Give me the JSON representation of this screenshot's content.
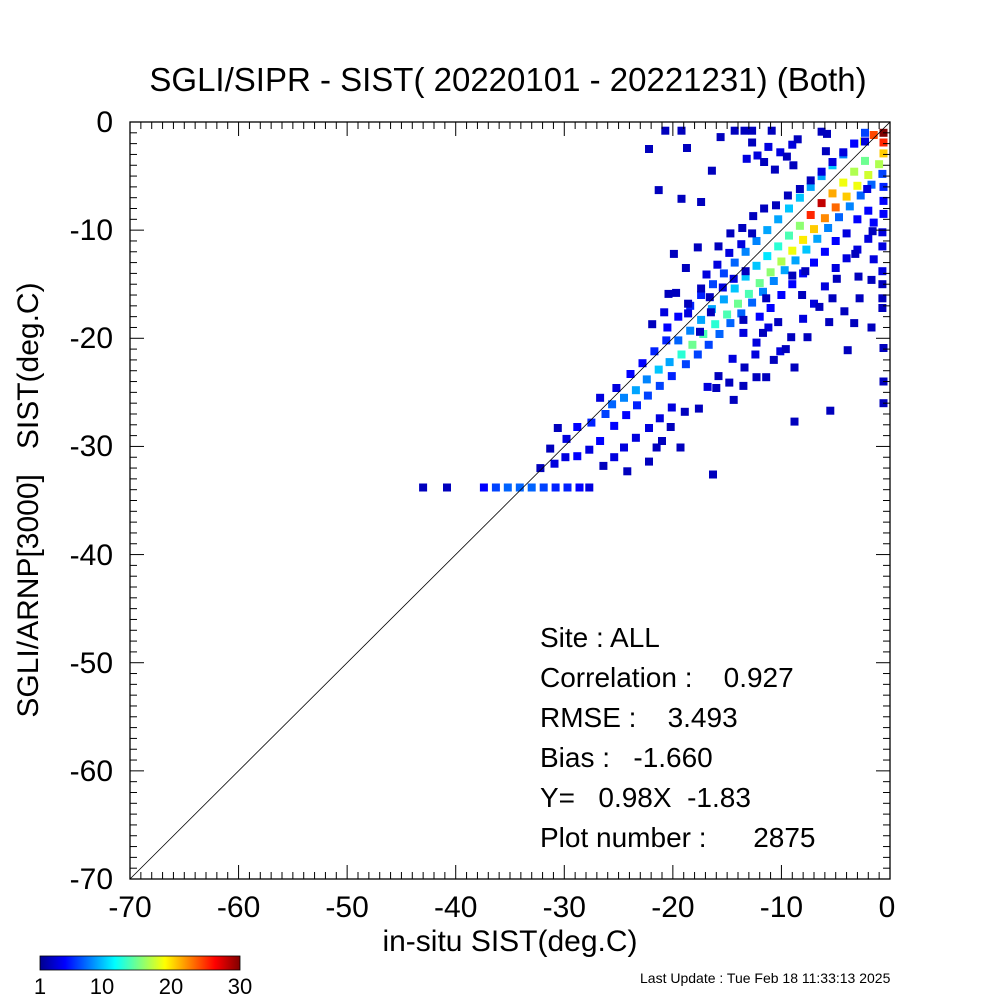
{
  "chart_data": {
    "type": "heatmap",
    "title": "SGLI/SIPR - SIST( 20220101 - 20221231) (Both)",
    "xlabel": "in-situ SIST(deg.C)",
    "ylabel": "SGLI/ARNP[3000]   SIST(deg.C)",
    "xlim": [
      -70,
      0
    ],
    "ylim": [
      -70,
      0
    ],
    "xticks": [
      "-70",
      "-60",
      "-50",
      "-40",
      "-30",
      "-20",
      "-10",
      "0"
    ],
    "yticks": [
      "0",
      "-10",
      "-20",
      "-30",
      "-40",
      "-50",
      "-60",
      "-70"
    ],
    "reference_line": "1:1",
    "colorbar": {
      "min": 1,
      "max": 30,
      "ticks": [
        "1",
        "10",
        "20",
        "30"
      ],
      "colormap": "jet"
    },
    "cells": [
      [
        -43,
        -33.8,
        1
      ],
      [
        -40.8,
        -33.8,
        1
      ],
      [
        -37.4,
        -33.8,
        3
      ],
      [
        -36.3,
        -33.8,
        5
      ],
      [
        -35.2,
        -33.8,
        6
      ],
      [
        -34.1,
        -33.8,
        6
      ],
      [
        -33,
        -33.8,
        6
      ],
      [
        -31.9,
        -33.8,
        5
      ],
      [
        -30.8,
        -33.8,
        4
      ],
      [
        -29.7,
        -33.8,
        4
      ],
      [
        -28.6,
        -33.8,
        3
      ],
      [
        -27.7,
        -33.8,
        2
      ],
      [
        -32.2,
        -32,
        1
      ],
      [
        -30.9,
        -31.6,
        2
      ],
      [
        -29.9,
        -31,
        2
      ],
      [
        -28.8,
        -30.9,
        3
      ],
      [
        -27.7,
        -30.3,
        2
      ],
      [
        -26.7,
        -29.5,
        3
      ],
      [
        -31.3,
        -30.2,
        1
      ],
      [
        -29.8,
        -29.3,
        2
      ],
      [
        -30.6,
        -28.3,
        1
      ],
      [
        -28.8,
        -28.2,
        3
      ],
      [
        -27.5,
        -27.8,
        4
      ],
      [
        -26.2,
        -27,
        5
      ],
      [
        -25.6,
        -26.1,
        6
      ],
      [
        -24.5,
        -25.5,
        7
      ],
      [
        -23.4,
        -24.8,
        8
      ],
      [
        -22.4,
        -23.8,
        7
      ],
      [
        -21.3,
        -22.9,
        9
      ],
      [
        -20.3,
        -22.2,
        8
      ],
      [
        -25.4,
        -28.1,
        3
      ],
      [
        -24.3,
        -27.1,
        3
      ],
      [
        -23.3,
        -26.2,
        4
      ],
      [
        -22.3,
        -25.3,
        5
      ],
      [
        -21.2,
        -24.4,
        5
      ],
      [
        -20.1,
        -23.5,
        4
      ],
      [
        -26.7,
        -25.5,
        2
      ],
      [
        -25.2,
        -24.6,
        2
      ],
      [
        -23.9,
        -23.3,
        3
      ],
      [
        -22.8,
        -22.3,
        3
      ],
      [
        -21.7,
        -21.2,
        4
      ],
      [
        -20.6,
        -20.2,
        4
      ],
      [
        -19.2,
        -21.5,
        12
      ],
      [
        -18.2,
        -20.6,
        14
      ],
      [
        -17.2,
        -19.6,
        13
      ],
      [
        -16.1,
        -18.7,
        12
      ],
      [
        -15,
        -17.8,
        13
      ],
      [
        -14,
        -16.8,
        14
      ],
      [
        -13,
        -15.9,
        13
      ],
      [
        -12,
        -14.9,
        14
      ],
      [
        -11,
        -13.9,
        15
      ],
      [
        -10,
        -12.9,
        16
      ],
      [
        -9,
        -11.9,
        18
      ],
      [
        -8,
        -10.9,
        19
      ],
      [
        -7,
        -9.9,
        20
      ],
      [
        -6,
        -8.9,
        22
      ],
      [
        -5,
        -7.9,
        23
      ],
      [
        -4,
        -6.9,
        20
      ],
      [
        -3,
        -5.9,
        18
      ],
      [
        -2,
        -4.9,
        17
      ],
      [
        -1,
        -3.9,
        16
      ],
      [
        -0.6,
        -2.9,
        20
      ],
      [
        -0.6,
        -1.9,
        25
      ],
      [
        -0.6,
        -1,
        30
      ],
      [
        -1.5,
        -1.2,
        24
      ],
      [
        -2.4,
        -1.8,
        18
      ],
      [
        -19.5,
        -20.2,
        6
      ],
      [
        -18.4,
        -19.3,
        7
      ],
      [
        -17.4,
        -18.3,
        8
      ],
      [
        -16.4,
        -17.3,
        8
      ],
      [
        -15.3,
        -16.4,
        8
      ],
      [
        -14.3,
        -15.4,
        9
      ],
      [
        -13.3,
        -14.3,
        9
      ],
      [
        -12.3,
        -13.3,
        9
      ],
      [
        -11.3,
        -12.4,
        10
      ],
      [
        -10.3,
        -11.5,
        12
      ],
      [
        -9.3,
        -10.5,
        13
      ],
      [
        -8.3,
        -9.6,
        15
      ],
      [
        -7.3,
        -8.6,
        25
      ],
      [
        -6.3,
        -7.5,
        28
      ],
      [
        -5.3,
        -6.6,
        21
      ],
      [
        -4.3,
        -5.6,
        18
      ],
      [
        -3.3,
        -4.6,
        16
      ],
      [
        -2.3,
        -3.6,
        14
      ],
      [
        -18.8,
        -22.4,
        5
      ],
      [
        -17.7,
        -21.5,
        5
      ],
      [
        -16.7,
        -20.6,
        5
      ],
      [
        -15.7,
        -19.6,
        6
      ],
      [
        -14.7,
        -18.6,
        6
      ],
      [
        -13.7,
        -17.7,
        6
      ],
      [
        -12.7,
        -16.7,
        6
      ],
      [
        -11.7,
        -15.7,
        7
      ],
      [
        -10.7,
        -14.7,
        7
      ],
      [
        -9.7,
        -13.7,
        8
      ],
      [
        -8.7,
        -12.8,
        8
      ],
      [
        -7.7,
        -11.8,
        9
      ],
      [
        -6.7,
        -10.8,
        8
      ],
      [
        -5.7,
        -9.8,
        7
      ],
      [
        -4.7,
        -8.8,
        6
      ],
      [
        -3.7,
        -7.8,
        7
      ],
      [
        -2.7,
        -6.8,
        6
      ],
      [
        -1.7,
        -5.8,
        6
      ],
      [
        -0.7,
        -4.8,
        5
      ],
      [
        -0.6,
        -6,
        4
      ],
      [
        -0.6,
        -7.3,
        3
      ],
      [
        -0.6,
        -8.5,
        3
      ],
      [
        -1.5,
        -9.3,
        3
      ],
      [
        -0.7,
        -10.2,
        2
      ],
      [
        -0.7,
        -11.5,
        2
      ],
      [
        -1.5,
        -12.7,
        2
      ],
      [
        -0.7,
        -13.8,
        2
      ],
      [
        -0.7,
        -15,
        1
      ],
      [
        -0.7,
        -16.3,
        1
      ],
      [
        -0.7,
        -17.2,
        1
      ],
      [
        -20.5,
        -19,
        3
      ],
      [
        -19.5,
        -18,
        3
      ],
      [
        -18.4,
        -17,
        4
      ],
      [
        -17.4,
        -16,
        4
      ],
      [
        -16.3,
        -15,
        5
      ],
      [
        -15.3,
        -14,
        5
      ],
      [
        -14.3,
        -13,
        6
      ],
      [
        -13.3,
        -12,
        7
      ],
      [
        -12.3,
        -11,
        7
      ],
      [
        -11.3,
        -10,
        8
      ],
      [
        -10.3,
        -9,
        8
      ],
      [
        -9.3,
        -8,
        9
      ],
      [
        -8.3,
        -7,
        9
      ],
      [
        -7.3,
        -6,
        8
      ],
      [
        -6.3,
        -5,
        8
      ],
      [
        -5.3,
        -4,
        9
      ],
      [
        -4.3,
        -3,
        7
      ],
      [
        -3.3,
        -2,
        5
      ],
      [
        -2.3,
        -1,
        5
      ],
      [
        -12,
        -18,
        3
      ],
      [
        -11,
        -17.2,
        3
      ],
      [
        -10,
        -16,
        3
      ],
      [
        -9,
        -15,
        3
      ],
      [
        -8,
        -14,
        3
      ],
      [
        -7,
        -13,
        3
      ],
      [
        -6,
        -12,
        3
      ],
      [
        -5,
        -11,
        3
      ],
      [
        -4,
        -10.3,
        2
      ],
      [
        -3,
        -9,
        3
      ],
      [
        -2,
        -8.2,
        3
      ],
      [
        -13.5,
        -19.5,
        2
      ],
      [
        -12.3,
        -20.4,
        2
      ],
      [
        -11.2,
        -19,
        2
      ],
      [
        -10.1,
        -21.2,
        2
      ],
      [
        -9.1,
        -19.9,
        1
      ],
      [
        -8,
        -18.2,
        2
      ],
      [
        -7,
        -16.8,
        2
      ],
      [
        -6,
        -15.2,
        2
      ],
      [
        -5,
        -13.5,
        2
      ],
      [
        -4,
        -12.6,
        2
      ],
      [
        -3,
        -11.8,
        2
      ],
      [
        -2,
        -10.8,
        2
      ],
      [
        -14.5,
        -21.9,
        2
      ],
      [
        -13.4,
        -22.7,
        1
      ],
      [
        -12.4,
        -21.5,
        2
      ],
      [
        -11.4,
        -23.6,
        1
      ],
      [
        -15.8,
        -23.5,
        1
      ],
      [
        -16.8,
        -24.5,
        2
      ],
      [
        -14.8,
        -24.1,
        1
      ],
      [
        -20.1,
        -26.4,
        2
      ],
      [
        -21.2,
        -27.4,
        2
      ],
      [
        -22.2,
        -28.3,
        2
      ],
      [
        -23.4,
        -29.2,
        2
      ],
      [
        -24.5,
        -30.1,
        2
      ],
      [
        -25.4,
        -31,
        2
      ],
      [
        -26.4,
        -31.8,
        1
      ],
      [
        -18.9,
        -26.8,
        1
      ],
      [
        -20.2,
        -28.2,
        1
      ],
      [
        -21.5,
        -30.1,
        1
      ],
      [
        -22.2,
        -31.4,
        1
      ],
      [
        -24.2,
        -32.3,
        1
      ],
      [
        -21,
        -29.5,
        1
      ],
      [
        -19.3,
        -30.1,
        1
      ],
      [
        -16.3,
        -32.6,
        1
      ],
      [
        -20.8,
        -17.6,
        2
      ],
      [
        -21.9,
        -18.7,
        1
      ],
      [
        -20.4,
        -15.9,
        1
      ],
      [
        -16.9,
        -14.1,
        2
      ],
      [
        -15.9,
        -13.2,
        2
      ],
      [
        -14.8,
        -12.1,
        2
      ],
      [
        -13.7,
        -11.3,
        2
      ],
      [
        -12.7,
        -10.3,
        1
      ],
      [
        -15.4,
        -15.3,
        2
      ],
      [
        -14.4,
        -14.5,
        2
      ],
      [
        -13.3,
        -13.8,
        1
      ],
      [
        -17.4,
        -15.4,
        1
      ],
      [
        -16.6,
        -16.2,
        1
      ],
      [
        -18.6,
        -16.8,
        1
      ],
      [
        -19.7,
        -15.8,
        1
      ],
      [
        -18.8,
        -13.5,
        1
      ],
      [
        -19.9,
        -12.2,
        1
      ],
      [
        -17.7,
        -11.6,
        1
      ],
      [
        -15.8,
        -11.5,
        1
      ],
      [
        -14.7,
        -10.3,
        1
      ],
      [
        -13.6,
        -9.8,
        1
      ],
      [
        -12.6,
        -8.7,
        1
      ],
      [
        -11.6,
        -8,
        1
      ],
      [
        -10.5,
        -7.7,
        1
      ],
      [
        -9.4,
        -6.8,
        1
      ],
      [
        -8.3,
        -6.2,
        1
      ],
      [
        -7.3,
        -5.4,
        1
      ],
      [
        -6.3,
        -4.6,
        2
      ],
      [
        -5.3,
        -3.7,
        2
      ],
      [
        -4.3,
        -2.8,
        2
      ],
      [
        -3.3,
        -2,
        3
      ],
      [
        -2.3,
        -1.8,
        2
      ],
      [
        -13.2,
        -3.4,
        2
      ],
      [
        -12.2,
        -3.1,
        2
      ],
      [
        -11.2,
        -2.3,
        2
      ],
      [
        -10.1,
        -2.8,
        2
      ],
      [
        -9,
        -2.1,
        2
      ],
      [
        -12.7,
        -1.9,
        1
      ],
      [
        -11.6,
        -3.7,
        1
      ],
      [
        -10.6,
        -4.4,
        1
      ],
      [
        -9.5,
        -3.2,
        1
      ],
      [
        -8.5,
        -1.6,
        1
      ],
      [
        -18.7,
        -2.4,
        1
      ],
      [
        -15.6,
        -1.4,
        1
      ],
      [
        -12.7,
        -0.8,
        1
      ],
      [
        -5.9,
        -2.7,
        1
      ],
      [
        -5.8,
        -1.1,
        1
      ],
      [
        -19.2,
        -0.8,
        1
      ],
      [
        -14.3,
        -0.8,
        1
      ],
      [
        -13.4,
        -0.8,
        1
      ],
      [
        -10.9,
        -0.8,
        1
      ],
      [
        -6.3,
        -0.9,
        1
      ],
      [
        -22.2,
        -2.5,
        1
      ],
      [
        -16.4,
        -4.5,
        1
      ],
      [
        -8.9,
        -4,
        1
      ],
      [
        -20.7,
        -0.8,
        1
      ],
      [
        -19.2,
        -7.1,
        1
      ],
      [
        -17.4,
        -7.4,
        1
      ],
      [
        -21.3,
        -6.3,
        1
      ],
      [
        -17.5,
        -19.4,
        1
      ],
      [
        -18.6,
        -17.7,
        2
      ],
      [
        -16.5,
        -17.6,
        1
      ],
      [
        -11.7,
        -19.5,
        1
      ],
      [
        -11.4,
        -16.3,
        1
      ],
      [
        -9.6,
        -21,
        1
      ],
      [
        -7.6,
        -19.9,
        1
      ],
      [
        -6.5,
        -17.1,
        1
      ],
      [
        -5.3,
        -16.3,
        1
      ],
      [
        -8.8,
        -22.7,
        1
      ],
      [
        -10.7,
        -22,
        1
      ],
      [
        -12.3,
        -23.6,
        1
      ],
      [
        -13.5,
        -24.4,
        1
      ],
      [
        -14.4,
        -25.7,
        1
      ],
      [
        -16,
        -24.6,
        1
      ],
      [
        -17.6,
        -26.5,
        1
      ],
      [
        -8.8,
        -27.7,
        1
      ],
      [
        -5.5,
        -26.7,
        1
      ],
      [
        -3.9,
        -21.1,
        1
      ],
      [
        -0.6,
        -20.9,
        1
      ],
      [
        -0.6,
        -24,
        1
      ],
      [
        -0.6,
        -26,
        1
      ],
      [
        -1.7,
        -19,
        1
      ],
      [
        -3.3,
        -18.6,
        1
      ],
      [
        -4.2,
        -17.5,
        1
      ],
      [
        -5.6,
        -18.5,
        1
      ],
      [
        -2.8,
        -16.3,
        1
      ],
      [
        -1.7,
        -14.6,
        1
      ],
      [
        -2.9,
        -14.3,
        1
      ],
      [
        -4.9,
        -14.5,
        1
      ],
      [
        -1.6,
        -10.1,
        1
      ],
      [
        -2.1,
        -6.2,
        2
      ],
      [
        -3.2,
        -12.2,
        1
      ],
      [
        -7.8,
        -13.8,
        1
      ],
      [
        -8.1,
        -16,
        1
      ],
      [
        -9,
        -14.2,
        1
      ],
      [
        -10.3,
        -18.5,
        1
      ],
      [
        -13.5,
        -18.3,
        1
      ]
    ],
    "stats_lines": [
      "Site : ALL",
      "Correlation :    0.927",
      "RMSE :    3.493",
      "Bias :   -1.660",
      "Y=   0.98X  -1.83",
      "Plot number :      2875"
    ]
  },
  "footer": {
    "last_update": "Last Update : Tue Feb 18 11:33:13 2025"
  }
}
